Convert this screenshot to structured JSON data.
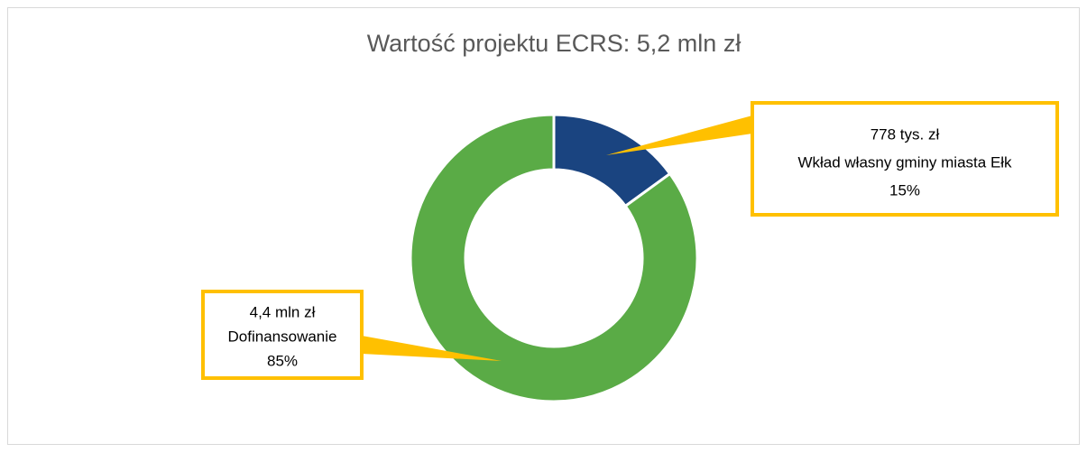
{
  "chart_data": {
    "type": "pie",
    "title": "Wartość projektu ECRS: 5,2 mln zł",
    "categories": [
      "Wkład własny gminy miasta Ełk",
      "Dofinansowanie"
    ],
    "values": [
      15,
      85
    ],
    "value_labels": [
      "15%",
      "85%"
    ],
    "amount_labels": [
      "778 tys. zł",
      "4,4 mln zł"
    ],
    "colors": [
      "#1a4480",
      "#5aab46"
    ],
    "label_border_color": "#ffc000"
  }
}
